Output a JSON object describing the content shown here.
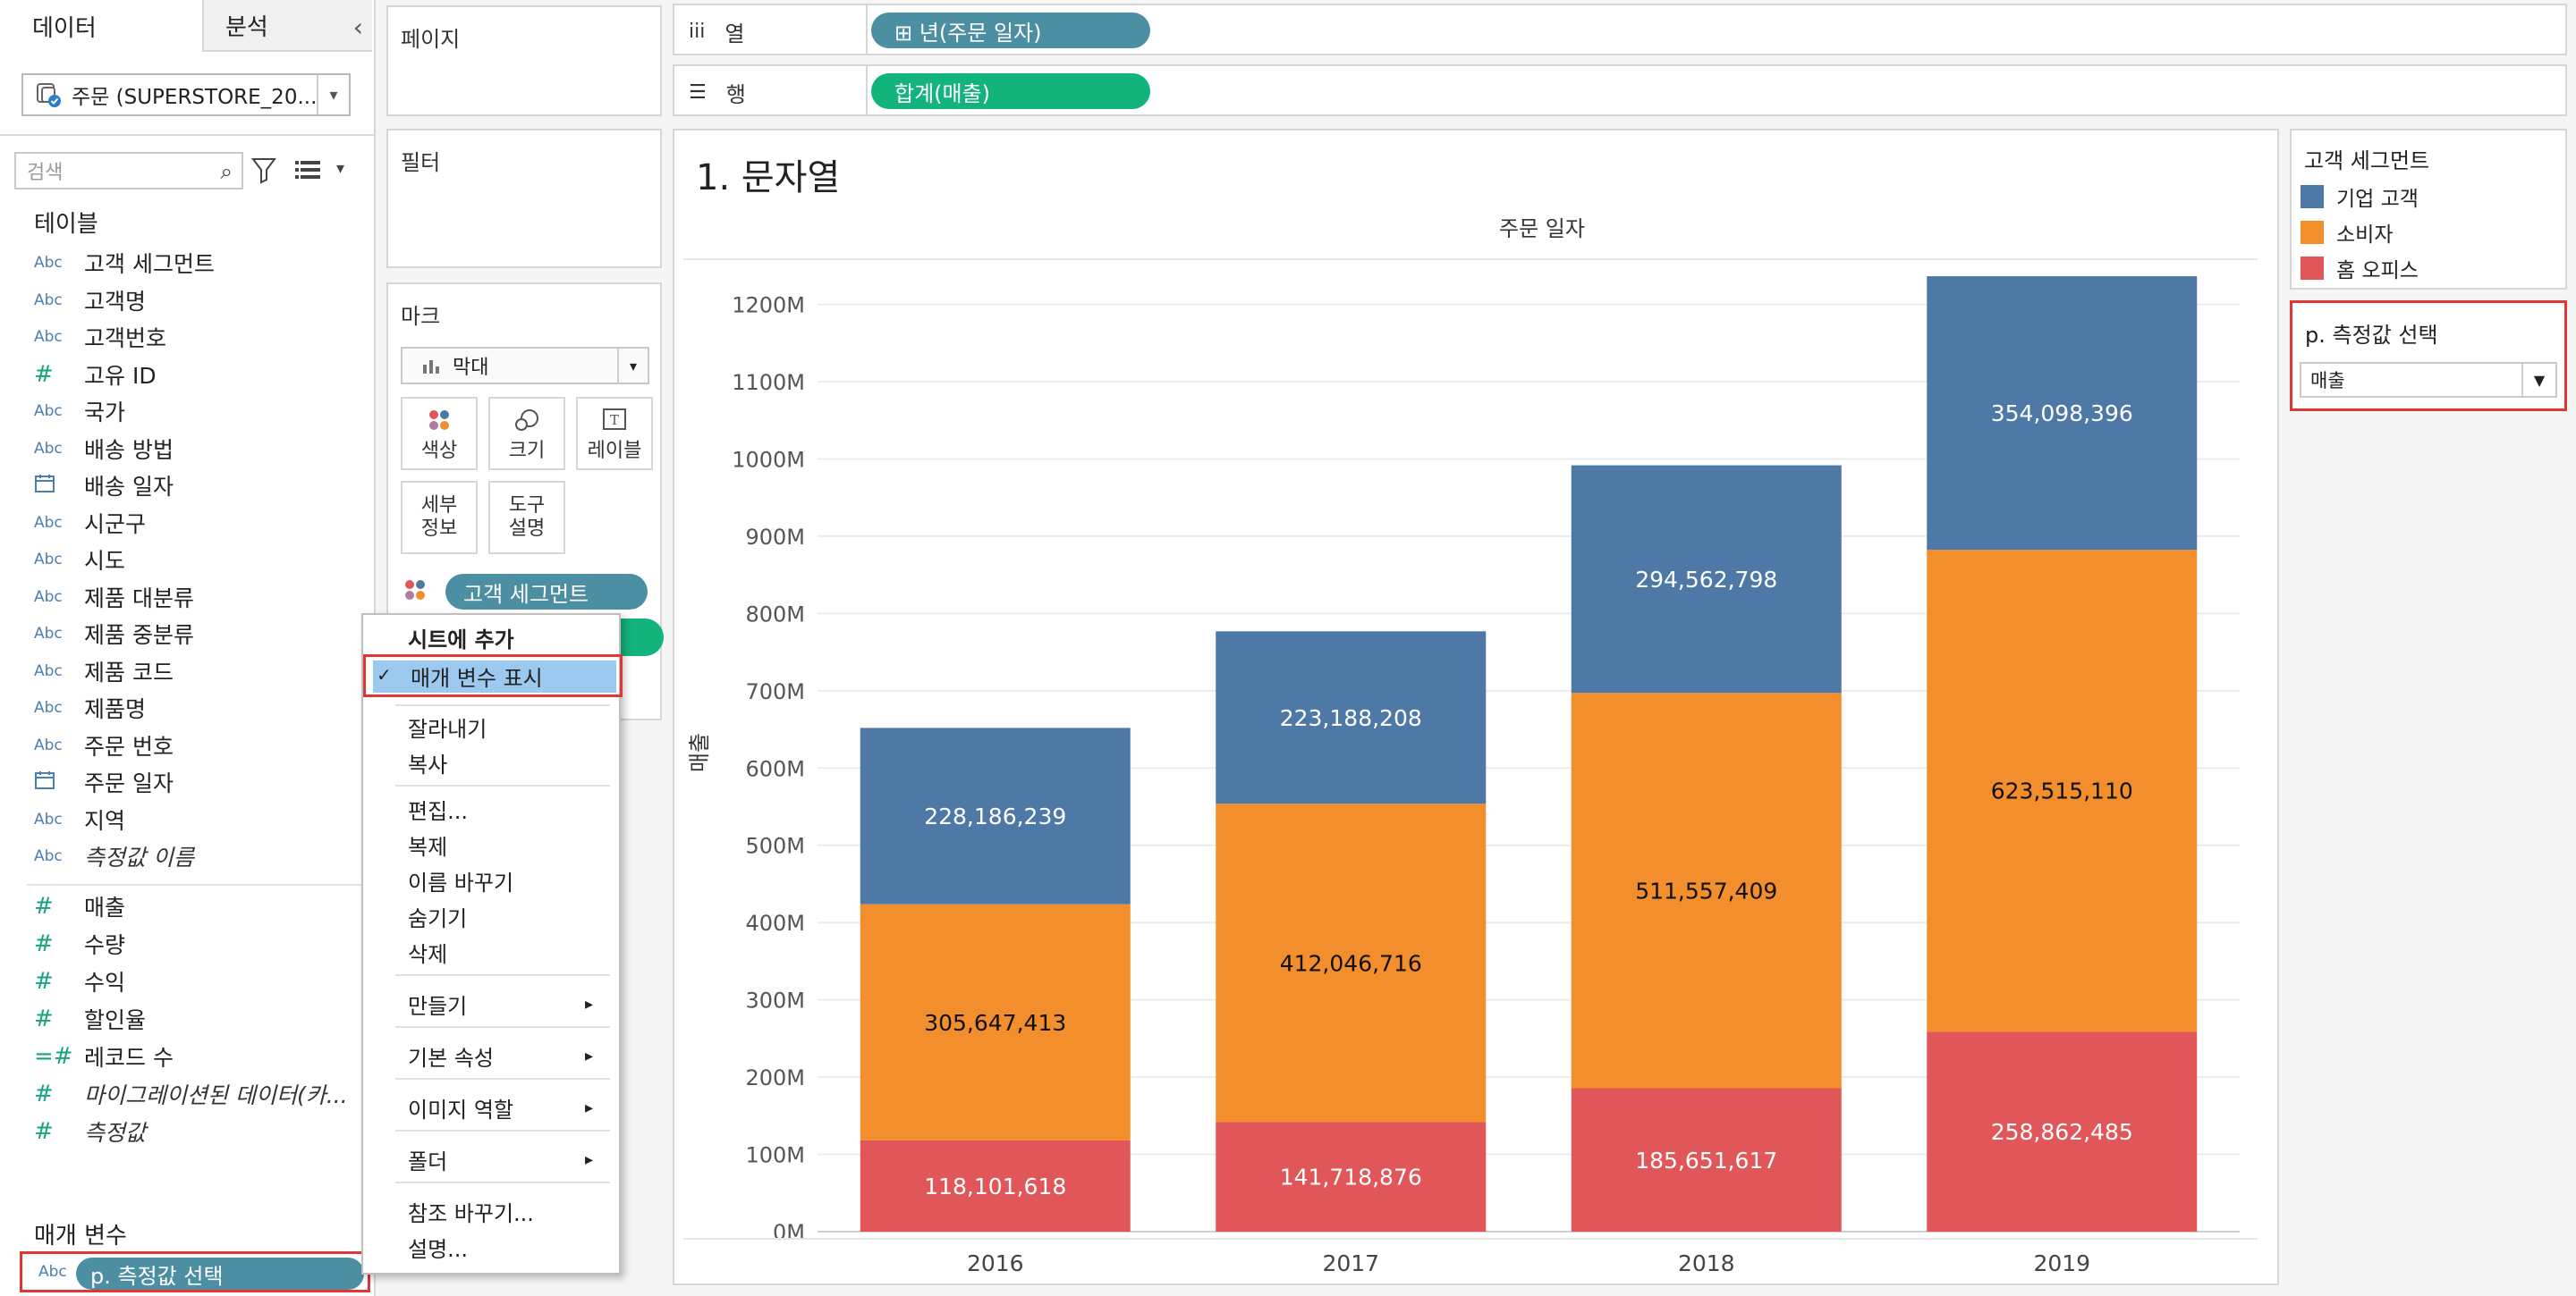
{
  "tabs": {
    "data": "데이터",
    "analysis": "분석"
  },
  "datasource": {
    "label": "주문 (SUPERSTORE_20..."
  },
  "search": {
    "placeholder": "검색"
  },
  "tables_label": "테이블",
  "dimension_fields": [
    {
      "type": "Abc",
      "label": "고객 세그먼트"
    },
    {
      "type": "Abc",
      "label": "고객명"
    },
    {
      "type": "Abc",
      "label": "고객번호"
    },
    {
      "type": "#",
      "label": "고유 ID"
    },
    {
      "type": "Abc",
      "label": "국가"
    },
    {
      "type": "Abc",
      "label": "배송 방법"
    },
    {
      "type": "calendar",
      "label": "배송 일자"
    },
    {
      "type": "Abc",
      "label": "시군구"
    },
    {
      "type": "Abc",
      "label": "시도"
    },
    {
      "type": "Abc",
      "label": "제품 대분류"
    },
    {
      "type": "Abc",
      "label": "제품 중분류"
    },
    {
      "type": "Abc",
      "label": "제품 코드"
    },
    {
      "type": "Abc",
      "label": "제품명"
    },
    {
      "type": "Abc",
      "label": "주문 번호"
    },
    {
      "type": "calendar",
      "label": "주문 일자"
    },
    {
      "type": "Abc",
      "label": "지역"
    },
    {
      "type": "Abc",
      "label": "측정값 이름",
      "italic": true
    }
  ],
  "measure_fields": [
    {
      "type": "#",
      "label": "매출"
    },
    {
      "type": "#",
      "label": "수량"
    },
    {
      "type": "#",
      "label": "수익"
    },
    {
      "type": "#",
      "label": "할인율"
    },
    {
      "type": "=#",
      "label": "레코드 수"
    },
    {
      "type": "#",
      "label": "마이그레이션된 데이터(카...",
      "italic": true
    },
    {
      "type": "#",
      "label": "측정값",
      "italic": true
    }
  ],
  "params_label": "매개 변수",
  "param_field": {
    "type": "Abc",
    "label": "p. 측정값 선택"
  },
  "shelves": {
    "pages": "페이지",
    "filters": "필터",
    "marks": "마크",
    "columns": "열",
    "rows": "행",
    "column_pill": "⊞ 년(주문 일자)",
    "row_pill": "합계(매출)"
  },
  "marks": {
    "type": "막대",
    "color": "색상",
    "size": "크기",
    "label": "레이블",
    "detail": "세부\n정보",
    "tooltip": "도구\n설명",
    "segment_pill": "고객 세그먼트"
  },
  "sheet_title": "1. 문자열",
  "context_menu": {
    "header": "시트에 추가",
    "show_param": "매개 변수 표시",
    "items": [
      "잘라내기",
      "복사",
      "편집...",
      "복제",
      "이름 바꾸기",
      "숨기기",
      "삭제",
      "만들기",
      "기본 속성",
      "이미지 역할",
      "폴더",
      "참조 바꾸기...",
      "설명..."
    ]
  },
  "legend": {
    "title": "고객 세그먼트",
    "items": [
      {
        "label": "기업 고객",
        "color": "#4e79a7"
      },
      {
        "label": "소비자",
        "color": "#f28e2b"
      },
      {
        "label": "홈 오피스",
        "color": "#e15759"
      }
    ]
  },
  "param_control": {
    "title": "p. 측정값 선택",
    "value": "매출"
  },
  "chart_data": {
    "type": "bar",
    "stacked": true,
    "title": "주문 일자",
    "xlabel": "",
    "ylabel": "매출",
    "categories": [
      "2016",
      "2017",
      "2018",
      "2019"
    ],
    "ylim": [
      0,
      1240000000
    ],
    "yticks": [
      {
        "value": 0,
        "label": "0M"
      },
      {
        "value": 100000000,
        "label": "100M"
      },
      {
        "value": 200000000,
        "label": "200M"
      },
      {
        "value": 300000000,
        "label": "300M"
      },
      {
        "value": 400000000,
        "label": "400M"
      },
      {
        "value": 500000000,
        "label": "500M"
      },
      {
        "value": 600000000,
        "label": "600M"
      },
      {
        "value": 700000000,
        "label": "700M"
      },
      {
        "value": 800000000,
        "label": "800M"
      },
      {
        "value": 900000000,
        "label": "900M"
      },
      {
        "value": 1000000000,
        "label": "1000M"
      },
      {
        "value": 1100000000,
        "label": "1100M"
      },
      {
        "value": 1200000000,
        "label": "1200M"
      }
    ],
    "series": [
      {
        "name": "홈 오피스",
        "color": "#e15759",
        "label_color": "#ffffff",
        "values": [
          118101618,
          141718876,
          185651617,
          258862485
        ],
        "labels": [
          "118,101,618",
          "141,718,876",
          "185,651,617",
          "258,862,485"
        ]
      },
      {
        "name": "소비자",
        "color": "#f28e2b",
        "label_color": "#111111",
        "values": [
          305647413,
          412046716,
          511557409,
          623515110
        ],
        "labels": [
          "305,647,413",
          "412,046,716",
          "511,557,409",
          "623,515,110"
        ]
      },
      {
        "name": "기업 고객",
        "color": "#4e79a7",
        "label_color": "#ffffff",
        "values": [
          228186239,
          223188208,
          294562798,
          354098396
        ],
        "labels": [
          "228,186,239",
          "223,188,208",
          "294,562,798",
          "354,098,396"
        ]
      }
    ],
    "grid": true,
    "legend": "right"
  }
}
